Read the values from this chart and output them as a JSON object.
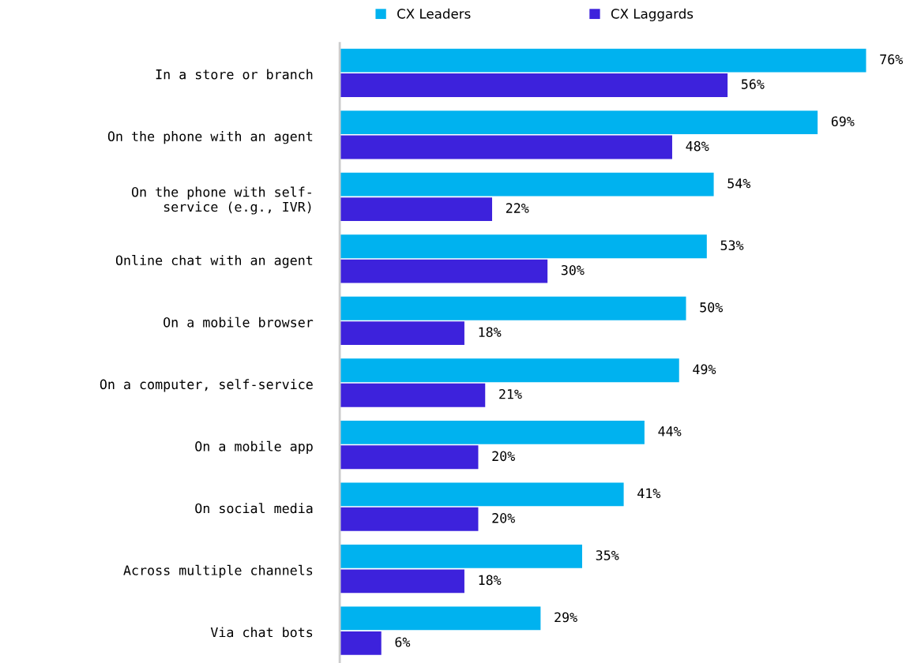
{
  "chart_data": {
    "type": "bar",
    "orientation": "horizontal",
    "legend": "top",
    "grid": false,
    "categories": [
      "In a store or branch",
      "On the phone with an agent",
      "On the phone with self-\nservice (e.g., IVR)",
      "Online chat with an agent",
      "On a mobile browser",
      "On a computer, self-service",
      "On a mobile app",
      "On social media",
      "Across multiple channels",
      "Via chat bots"
    ],
    "series": [
      {
        "name": "CX Leaders",
        "color": "#00b2ef",
        "values": [
          76,
          69,
          54,
          53,
          50,
          49,
          44,
          41,
          35,
          29
        ],
        "value_labels": [
          "76%",
          "69%",
          "54%",
          "53%",
          "50%",
          "49%",
          "44%",
          "41%",
          "35%",
          "29%"
        ]
      },
      {
        "name": "CX Laggards",
        "color": "#3d22dc",
        "values": [
          56,
          48,
          22,
          30,
          18,
          21,
          20,
          20,
          18,
          6
        ],
        "value_labels": [
          "56%",
          "48%",
          "22%",
          "30%",
          "18%",
          "21%",
          "20%",
          "20%",
          "18%",
          "6%"
        ]
      }
    ]
  }
}
